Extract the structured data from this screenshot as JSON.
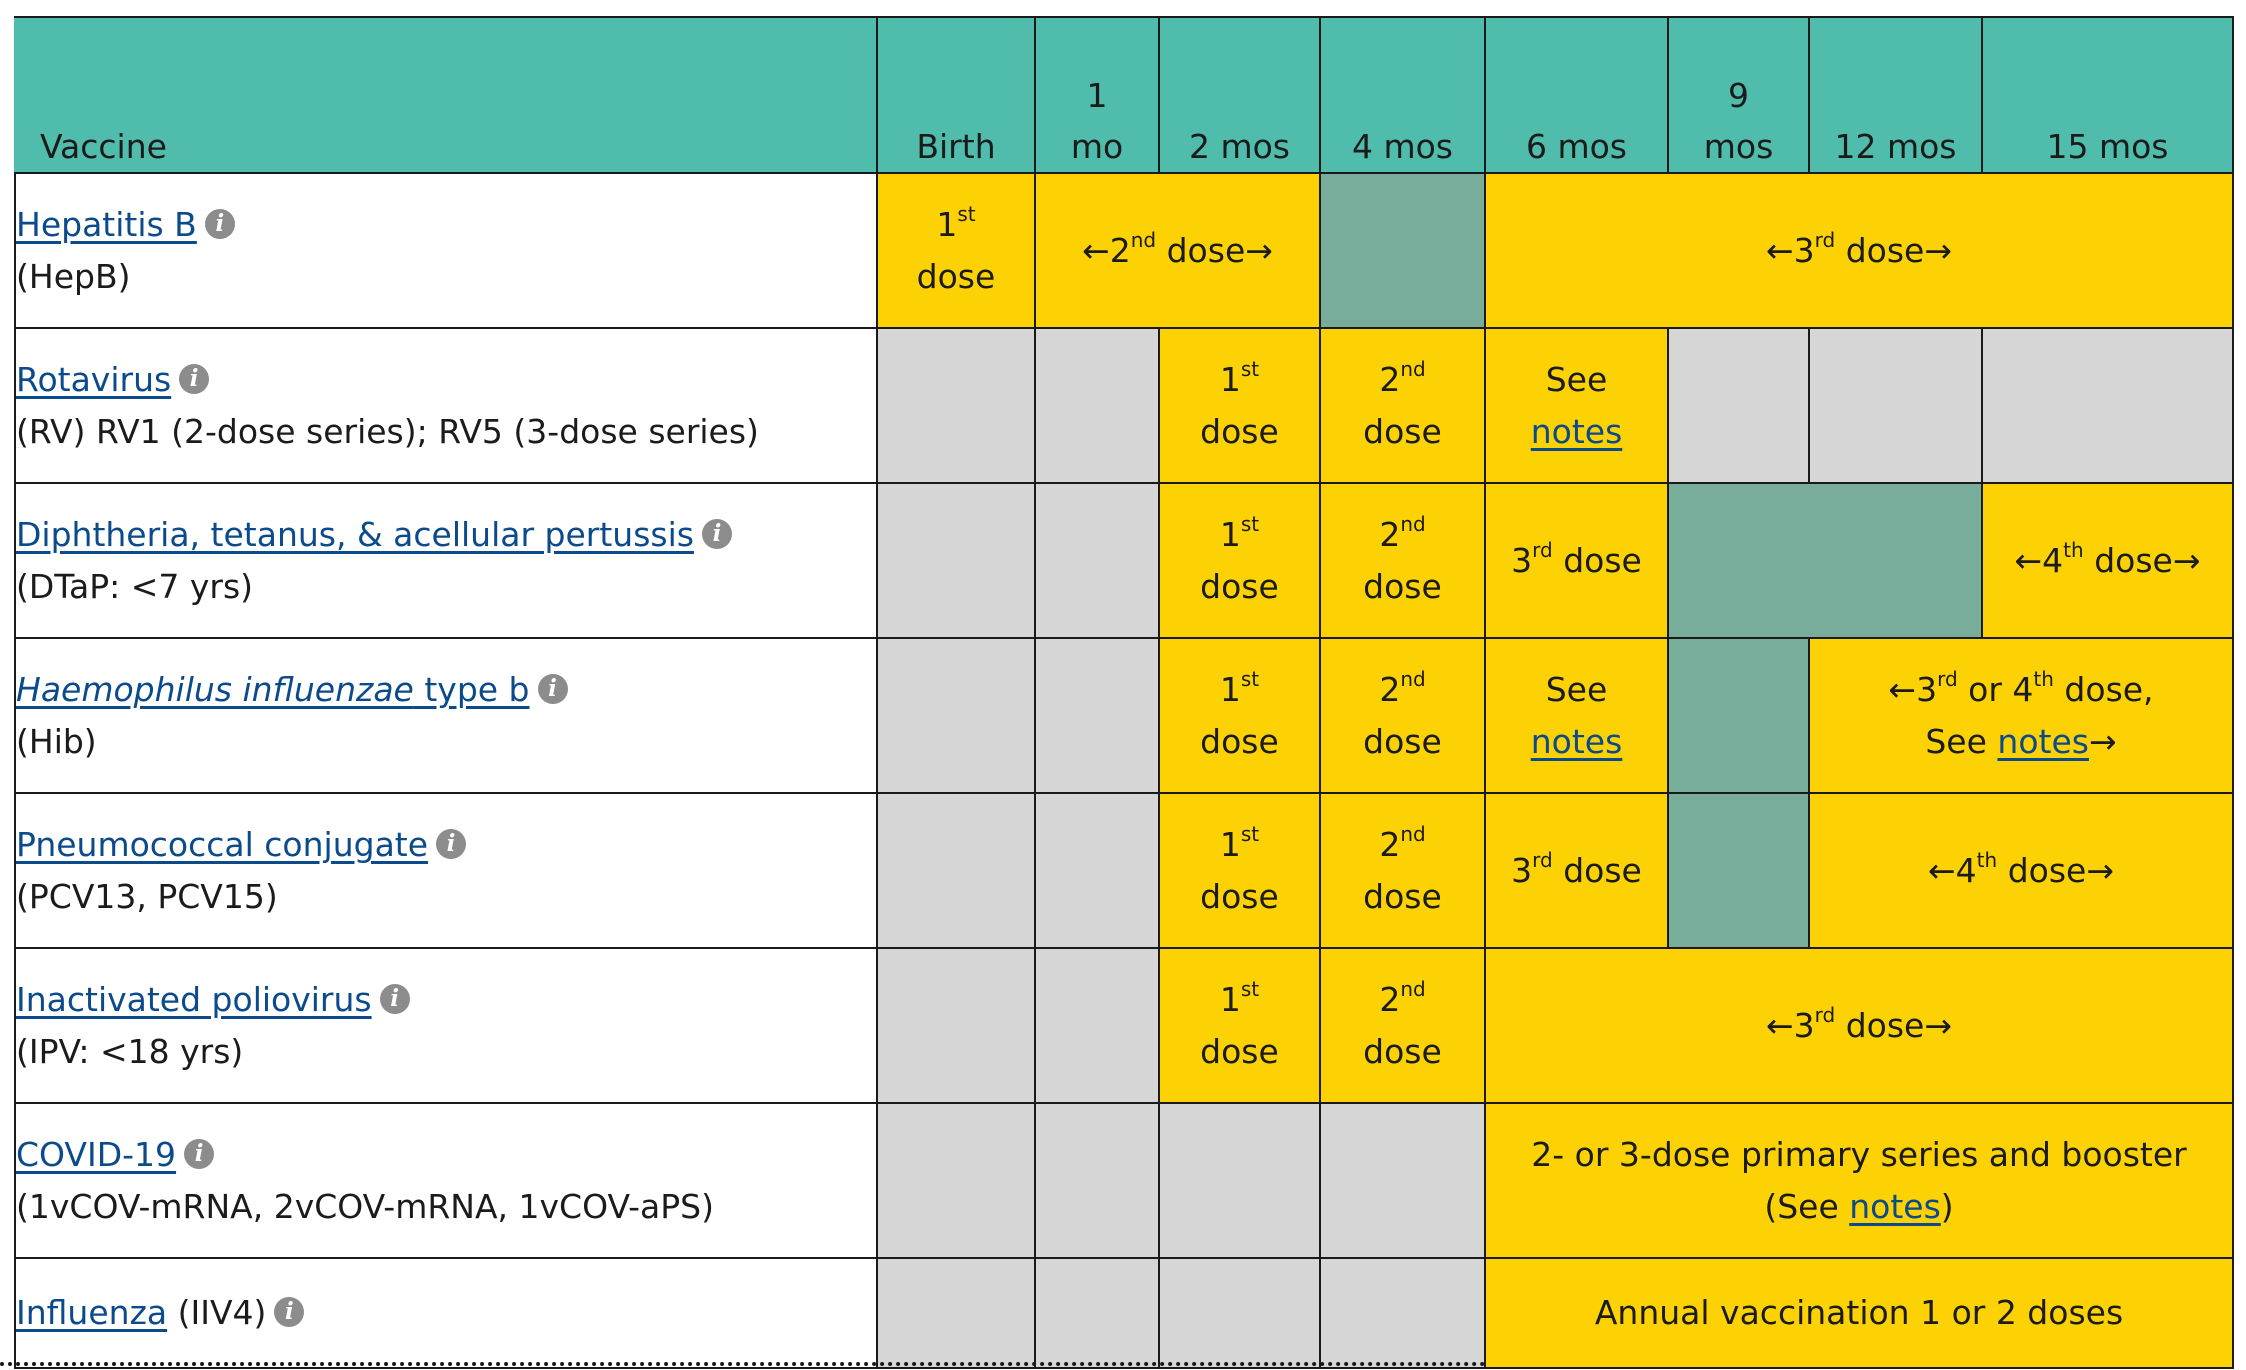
{
  "header": {
    "vaccine": "Vaccine",
    "ages": [
      {
        "top": "",
        "bottom": "Birth"
      },
      {
        "top": "1",
        "bottom": "mo"
      },
      {
        "top": "",
        "bottom": "2 mos"
      },
      {
        "top": "",
        "bottom": "4 mos"
      },
      {
        "top": "",
        "bottom": "6 mos"
      },
      {
        "top": "9",
        "bottom": "mos"
      },
      {
        "top": "",
        "bottom": "12 mos"
      },
      {
        "top": "",
        "bottom": "15 mos"
      }
    ]
  },
  "dose_text": {
    "dose": "dose",
    "see": "See",
    "notes": "notes",
    "see_cap": "See"
  },
  "vaccines": [
    {
      "name": "Hepatitis B",
      "abbrev": "(HepB)"
    },
    {
      "name": "Rotavirus",
      "abbrev": "(RV) RV1 (2-dose series); RV5 (3-dose series)"
    },
    {
      "name": "Diphtheria, tetanus, & acellular pertussis",
      "abbrev": "(DTaP: <7 yrs)"
    },
    {
      "name_italic": "Haemophilus influenzae",
      "name_rest": " type b",
      "abbrev": "(Hib)"
    },
    {
      "name": "Pneumococcal conjugate",
      "abbrev": "(PCV13, PCV15)"
    },
    {
      "name": "Inactivated poliovirus",
      "abbrev": "(IPV: <18 yrs)"
    },
    {
      "name": "COVID-19",
      "abbrev": "(1vCOV-mRNA, 2vCOV-mRNA, 1vCOV-aPS)"
    },
    {
      "name": "Influenza",
      "abbrev_inline": " (IIV4)"
    }
  ],
  "ordinals": {
    "n1": "1",
    "s1": "st",
    "n2": "2",
    "s2": "nd",
    "n3": "3",
    "s3": "rd",
    "n4": "4",
    "s4": "th"
  },
  "arrows": {
    "left": "←",
    "right": "→"
  },
  "phrases": {
    "or_fourth_prefix": " or ",
    "dose_comma": " dose,",
    "covid_line1": "2- or 3-dose primary series and booster",
    "covid_open": "(See ",
    "covid_close": ")",
    "influenza": "Annual vaccination 1 or 2 doses"
  },
  "info_icon_glyph": "i",
  "colors": {
    "header": "#4fbcac",
    "recommended": "#fdd204",
    "not_recommended": "#d6d6d6",
    "catch_up": "#78ad9b",
    "link": "#0b4a8b"
  }
}
